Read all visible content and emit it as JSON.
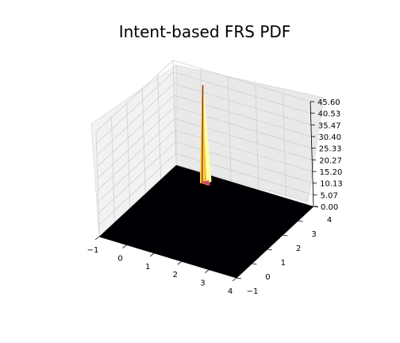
{
  "chart_data": {
    "type": "surface3d",
    "title": "Intent-based FRS PDF",
    "x_ticks": [
      "−1",
      "0",
      "1",
      "2",
      "3",
      "4"
    ],
    "y_ticks": [
      "−1",
      "0",
      "1",
      "2",
      "3",
      "4"
    ],
    "z_ticks": [
      "0.00",
      "5.07",
      "10.13",
      "15.20",
      "20.27",
      "25.33",
      "30.40",
      "35.47",
      "40.53",
      "45.60"
    ],
    "xlim": [
      -1,
      4
    ],
    "ylim": [
      -1,
      4
    ],
    "zlim": [
      0,
      45.6
    ],
    "colormap": "inferno",
    "peak": {
      "x": 0.3,
      "y": 3.6,
      "z": 42.0
    },
    "grid": true
  }
}
